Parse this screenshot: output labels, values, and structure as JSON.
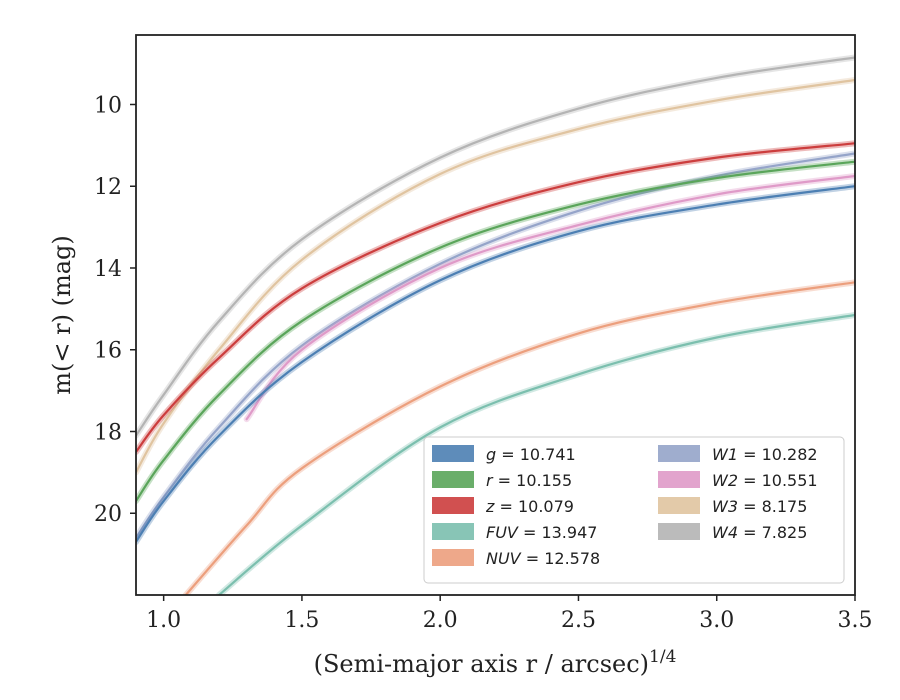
{
  "chart_data": {
    "type": "line",
    "xlabel": "(Semi-major axis r / arcsec)",
    "xlabel_var": "r",
    "xlabel_exponent": "1/4",
    "ylabel": "m(< r) (mag)",
    "xlim": [
      0.9,
      3.5
    ],
    "ylim": [
      22.0,
      8.3
    ],
    "y_inverted": true,
    "grid": false,
    "legend_position": "lower-right",
    "xticks": [
      1.0,
      1.5,
      2.0,
      2.5,
      3.0,
      3.5
    ],
    "xtick_labels": [
      "1.0",
      "1.5",
      "2.0",
      "2.5",
      "3.0",
      "3.5"
    ],
    "yticks": [
      10,
      12,
      14,
      16,
      18,
      20
    ],
    "ytick_labels": [
      "10",
      "12",
      "14",
      "16",
      "18",
      "20"
    ],
    "series": [
      {
        "name": "g = 10.741",
        "band": "g",
        "value": "10.741",
        "color": "#4c7fb3",
        "x": [
          0.9,
          1.0,
          1.2,
          1.5,
          2.0,
          2.5,
          3.0,
          3.5
        ],
        "y": [
          20.7,
          19.7,
          18.1,
          16.3,
          14.3,
          13.1,
          12.45,
          12.0
        ]
      },
      {
        "name": "r = 10.155",
        "band": "r",
        "value": "10.155",
        "color": "#5aa55a",
        "x": [
          0.9,
          1.0,
          1.2,
          1.5,
          2.0,
          2.5,
          3.0,
          3.5
        ],
        "y": [
          19.7,
          18.7,
          17.1,
          15.3,
          13.5,
          12.45,
          11.8,
          11.4
        ]
      },
      {
        "name": "z = 10.079",
        "band": "z",
        "value": "10.079",
        "color": "#cc3d3d",
        "x": [
          0.9,
          1.0,
          1.2,
          1.5,
          2.0,
          2.5,
          3.0,
          3.5
        ],
        "y": [
          18.5,
          17.6,
          16.2,
          14.5,
          12.9,
          11.9,
          11.3,
          10.95
        ]
      },
      {
        "name": "FUV = 13.947",
        "band": "FUV",
        "value": "13.947",
        "color": "#7bbfae",
        "x": [
          1.2,
          1.5,
          2.0,
          2.5,
          3.0,
          3.5
        ],
        "y": [
          22.0,
          20.3,
          17.9,
          16.6,
          15.7,
          15.15
        ]
      },
      {
        "name": "NUV = 12.578",
        "band": "NUV",
        "value": "12.578",
        "color": "#ec9f7d",
        "x": [
          1.08,
          1.3,
          1.5,
          2.0,
          2.5,
          3.0,
          3.5
        ],
        "y": [
          22.0,
          20.3,
          18.9,
          16.9,
          15.6,
          14.85,
          14.35
        ]
      },
      {
        "name": "W1 = 10.282",
        "band": "W1",
        "value": "10.282",
        "color": "#95a4c9",
        "x": [
          0.9,
          1.0,
          1.2,
          1.5,
          2.0,
          2.5,
          3.0,
          3.5
        ],
        "y": [
          20.6,
          19.6,
          17.9,
          15.9,
          13.9,
          12.6,
          11.75,
          11.2
        ]
      },
      {
        "name": "W2 = 10.551",
        "band": "W2",
        "value": "10.551",
        "color": "#df9ac8",
        "x": [
          1.3,
          1.5,
          2.0,
          2.5,
          3.0,
          3.5
        ],
        "y": [
          17.7,
          16.0,
          14.0,
          12.95,
          12.2,
          11.75
        ]
      },
      {
        "name": "W3 = 8.175",
        "band": "W3",
        "value": "8.175",
        "color": "#e0c4a0",
        "x": [
          0.9,
          1.0,
          1.2,
          1.5,
          2.0,
          2.5,
          3.0,
          3.5
        ],
        "y": [
          19.0,
          17.8,
          16.0,
          13.8,
          11.7,
          10.6,
          9.9,
          9.4
        ]
      },
      {
        "name": "W4 = 7.825",
        "band": "W4",
        "value": "7.825",
        "color": "#b4b4b4",
        "x": [
          0.9,
          1.0,
          1.2,
          1.5,
          2.0,
          2.5,
          3.0,
          3.5
        ],
        "y": [
          18.1,
          17.1,
          15.3,
          13.3,
          11.3,
          10.1,
          9.35,
          8.85
        ]
      }
    ],
    "legend_columns": [
      [
        "g",
        "r",
        "z",
        "FUV",
        "NUV"
      ],
      [
        "W1",
        "W2",
        "W3",
        "W4"
      ]
    ]
  }
}
